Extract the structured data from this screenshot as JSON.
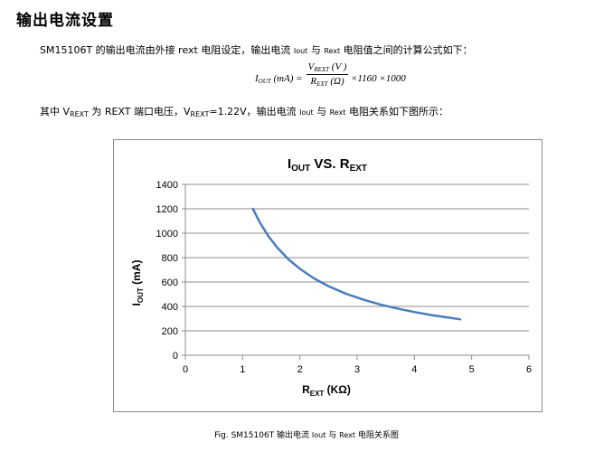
{
  "section": {
    "title": "输出电流设置"
  },
  "intro": {
    "prefix": "SM15106T 的输出电流由外接 rext 电阻设定，输出电流 ",
    "iout": "Iout",
    "middle": " 与 ",
    "rext": "Rext",
    "suffix": " 电阻值之间的计算公式如下："
  },
  "formula": {
    "lhs_main": "I",
    "lhs_sub": "OUT",
    "lhs_unit": " (mA) =",
    "num_main": "V",
    "num_sub": "REXT",
    "num_unit": " (V )",
    "den_main": "R",
    "den_sub": "EXT",
    "den_unit": " (Ω)",
    "rhs": "×1160 ×1000"
  },
  "note": {
    "text1": "其中 V",
    "sub1": "REXT",
    "text2": " 为 REXT 端口电压，V",
    "sub2": "REXT",
    "text3": "=1.22V，输出电流 ",
    "iout": "Iout",
    "text4": " 与 ",
    "rext": "Rext",
    "text5": " 电阻关系如下图所示："
  },
  "chart_data": {
    "type": "line",
    "title": "I",
    "title_sub": "OUT",
    "title_tail": " VS. R",
    "title_sub2": "EXT",
    "xlabel_main": "R",
    "xlabel_sub": "EXT",
    "xlabel_tail": " (KΩ)",
    "ylabel_main": "I",
    "ylabel_sub": "OUT",
    "ylabel_tail": " (mA)",
    "xlim": [
      0,
      6
    ],
    "ylim": [
      0,
      1400
    ],
    "x_ticks": [
      "0",
      "1",
      "2",
      "3",
      "4",
      "5",
      "6"
    ],
    "y_ticks": [
      "0",
      "200",
      "400",
      "600",
      "800",
      "1000",
      "1200",
      "1400"
    ],
    "grid": "horizontal",
    "line_color": "#4a7ebb",
    "series": [
      {
        "x": [
          1.18,
          1.3,
          1.45,
          1.6,
          1.8,
          2.0,
          2.25,
          2.5,
          2.8,
          3.1,
          3.4,
          3.7,
          4.0,
          4.3,
          4.6,
          4.8
        ],
        "y": [
          1200,
          1089,
          976,
          885,
          786,
          708,
          629,
          566,
          505,
          457,
          416,
          383,
          354,
          329,
          308,
          295
        ]
      }
    ]
  },
  "caption": {
    "prefix": "Fig. SM15106T 输出电流 ",
    "iout": "Iout",
    "middle": " 与 ",
    "rext": "Rext",
    "suffix": " 电阻关系图"
  }
}
